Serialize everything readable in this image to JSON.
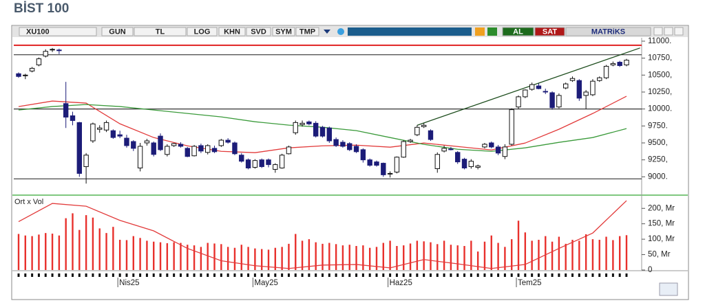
{
  "title": "BİST 100",
  "toolbar": [
    "XU100",
    "GUN",
    "TL",
    "LOG",
    "KHN",
    "SVD",
    "SYM",
    "TMP",
    "AL",
    "SAT",
    "MATRiKS"
  ],
  "chart_data": [
    {
      "type": "candlestick",
      "categories": [
        null,
        null,
        null,
        null,
        null,
        null,
        null,
        null,
        null,
        null,
        null,
        null,
        null,
        null,
        null,
        "Nis25",
        null,
        null,
        null,
        null,
        null,
        null,
        null,
        null,
        null,
        null,
        null,
        null,
        null,
        null,
        null,
        null,
        null,
        null,
        null,
        "May25",
        null,
        null,
        null,
        null,
        null,
        null,
        null,
        null,
        null,
        null,
        null,
        null,
        null,
        null,
        null,
        null,
        null,
        null,
        null,
        "Haz25",
        null,
        null,
        null,
        null,
        null,
        null,
        null,
        null,
        null,
        null,
        null,
        null,
        null,
        null,
        null,
        null,
        null,
        null,
        "Tem25",
        null,
        null,
        null,
        null,
        null,
        null,
        null,
        null,
        null,
        null,
        null,
        null,
        null,
        null,
        null,
        null
      ],
      "open": [
        10520,
        10490,
        10560,
        10650,
        10780,
        10870,
        10870,
        10080,
        9900,
        9800,
        9150,
        9530,
        9700,
        9690,
        9680,
        9620,
        9570,
        9520,
        9130,
        9500,
        9500,
        9600,
        9330,
        9460,
        9480,
        9420,
        9310,
        9460,
        9360,
        9420,
        9460,
        9540,
        9500,
        9320,
        9250,
        9140,
        9250,
        9250,
        9110,
        9130,
        9340,
        9650,
        9770,
        9810,
        9790,
        9730,
        9720,
        9550,
        9510,
        9490,
        9450,
        9400,
        9250,
        9220,
        9200,
        9040,
        9070,
        9290,
        9520,
        9620,
        9740,
        9680,
        9120,
        9380,
        9410,
        9360,
        9260,
        9150,
        9140,
        9440,
        9500,
        9440,
        9300,
        9480,
        10030,
        10180,
        10290,
        10340,
        10260,
        10240,
        10030,
        10310,
        10420,
        10420,
        10200,
        10210,
        10420,
        10460,
        10650,
        10690,
        10650
      ],
      "high": [
        10540,
        10520,
        10620,
        10760,
        10880,
        10900,
        10890,
        10400,
        9960,
        9810,
        9350,
        9800,
        9760,
        9830,
        9700,
        9680,
        9620,
        9540,
        9500,
        9560,
        9520,
        9640,
        9480,
        9500,
        9510,
        9440,
        9470,
        9490,
        9480,
        9460,
        9560,
        9570,
        9520,
        9350,
        9270,
        9260,
        9270,
        9270,
        9200,
        9340,
        9460,
        9830,
        9830,
        9830,
        9820,
        9750,
        9740,
        9580,
        9540,
        9510,
        9480,
        9420,
        9270,
        9240,
        9210,
        9080,
        9300,
        9540,
        9560,
        9760,
        9790,
        9700,
        9360,
        9460,
        9440,
        9380,
        9280,
        9260,
        9180,
        9500,
        9520,
        9470,
        9480,
        10010,
        10200,
        10290,
        10390,
        10380,
        10300,
        10260,
        10230,
        10390,
        10480,
        10440,
        10280,
        10440,
        10480,
        10650,
        10700,
        10710,
        10740
      ],
      "low": [
        10460,
        10440,
        10540,
        10630,
        10760,
        10840,
        10810,
        9720,
        9760,
        9000,
        8900,
        9500,
        9650,
        9660,
        9560,
        9570,
        9430,
        9380,
        9080,
        9460,
        9300,
        9380,
        9300,
        9440,
        9430,
        9290,
        9300,
        9350,
        9330,
        9350,
        9440,
        9490,
        9320,
        9210,
        9110,
        9120,
        9130,
        9140,
        9060,
        9120,
        9330,
        9620,
        9740,
        9760,
        9580,
        9580,
        9500,
        9440,
        9430,
        9380,
        9350,
        9210,
        9150,
        9150,
        9000,
        8990,
        9050,
        9280,
        9500,
        9600,
        9720,
        9530,
        9060,
        9360,
        9390,
        9190,
        9110,
        9120,
        9110,
        9420,
        9420,
        9320,
        9260,
        9460,
        10000,
        10160,
        10270,
        10290,
        10220,
        9990,
        10010,
        10290,
        10400,
        10120,
        10000,
        10190,
        10400,
        10440,
        10630,
        10620,
        10630
      ],
      "close": [
        10480,
        10500,
        10600,
        10740,
        10850,
        10880,
        10860,
        9880,
        9830,
        9050,
        9320,
        9780,
        9720,
        9800,
        9580,
        9600,
        9460,
        9420,
        9450,
        9530,
        9330,
        9400,
        9450,
        9490,
        9450,
        9300,
        9450,
        9380,
        9460,
        9370,
        9540,
        9510,
        9340,
        9230,
        9130,
        9240,
        9150,
        9180,
        9180,
        9320,
        9440,
        9800,
        9790,
        9780,
        9600,
        9600,
        9530,
        9460,
        9450,
        9400,
        9370,
        9250,
        9170,
        9170,
        9030,
        9050,
        9290,
        9520,
        9540,
        9730,
        9760,
        9550,
        9330,
        9420,
        9400,
        9220,
        9130,
        9230,
        9160,
        9480,
        9440,
        9350,
        9440,
        9990,
        10180,
        10280,
        10360,
        10300,
        10250,
        10020,
        10200,
        10370,
        10450,
        10160,
        10250,
        10410,
        10460,
        10630,
        10670,
        10640,
        10720
      ],
      "up_color": "#ffffff",
      "down_color": "#1c1c78",
      "ylim": [
        8740,
        11050
      ],
      "yticks": [
        {
          "value": 11000,
          "label": "11000."
        },
        {
          "value": 10750,
          "label": "10750,"
        },
        {
          "value": 10500,
          "label": "10500,"
        },
        {
          "value": 10250,
          "label": "10250,"
        },
        {
          "value": 10000,
          "label": "10000."
        },
        {
          "value": 9750,
          "label": "9750."
        },
        {
          "value": 9500,
          "label": "9500,"
        },
        {
          "value": 9250,
          "label": "9250,"
        },
        {
          "value": 9000,
          "label": "9000."
        }
      ],
      "hlines": [
        {
          "value": 10940,
          "color": "#e02020"
        },
        {
          "value": 10800,
          "color": "#333333"
        },
        {
          "value": 10000,
          "color": "#333333"
        },
        {
          "value": 8970,
          "color": "#333333"
        }
      ],
      "lines": [
        {
          "color": "#e23a3a",
          "x": [
            0,
            5,
            10,
            15,
            20,
            25,
            30,
            35,
            40,
            45,
            50,
            55,
            60,
            65,
            70,
            75,
            80,
            85,
            90
          ],
          "values": [
            10036,
            10117,
            10087,
            9782,
            9579,
            9457,
            9376,
            9356,
            9427,
            9457,
            9467,
            9437,
            9498,
            9447,
            9396,
            9498,
            9701,
            9934,
            10188
          ]
        },
        {
          "color": "#3a9a3a",
          "x": [
            0,
            5,
            10,
            15,
            20,
            25,
            30,
            35,
            40,
            45,
            50,
            55,
            60,
            65,
            70,
            75,
            80,
            85,
            90
          ],
          "values": [
            9985,
            10036,
            10066,
            10036,
            9985,
            9934,
            9884,
            9812,
            9762,
            9731,
            9681,
            9579,
            9478,
            9406,
            9376,
            9427,
            9508,
            9579,
            9711
          ]
        },
        {
          "color": "#1d4d1d",
          "x": [
            59,
            92
          ],
          "values": [
            9760,
            10900
          ]
        }
      ]
    },
    {
      "type": "bar",
      "label": "Ort x Vol",
      "values": [
        117,
        112,
        110,
        115,
        120,
        118,
        112,
        168,
        184,
        130,
        178,
        170,
        135,
        120,
        140,
        98,
        97,
        110,
        104,
        95,
        92,
        90,
        87,
        90,
        88,
        82,
        80,
        75,
        88,
        86,
        84,
        75,
        72,
        82,
        75,
        70,
        68,
        66,
        72,
        75,
        85,
        117,
        95,
        100,
        90,
        85,
        88,
        84,
        80,
        82,
        78,
        80,
        72,
        75,
        88,
        95,
        78,
        80,
        86,
        95,
        93,
        90,
        84,
        95,
        82,
        80,
        78,
        95,
        60,
        92,
        112,
        88,
        75,
        100,
        160,
        122,
        95,
        98,
        110,
        92,
        108,
        85,
        98,
        95,
        116,
        100,
        98,
        108,
        97,
        110,
        113
      ],
      "color": "#e8302c",
      "ylim": [
        0,
        234
      ],
      "yticks": [
        {
          "value": 200,
          "label": "200, Mr"
        },
        {
          "value": 150,
          "label": "150, Mr"
        },
        {
          "value": 100,
          "label": "100, Mr"
        },
        {
          "value": 50,
          "label": "50, Mr"
        },
        0
      ],
      "line": {
        "color": "#e23a3a",
        "x": [
          0,
          5,
          10,
          15,
          20,
          25,
          30,
          35,
          40,
          45,
          50,
          55,
          60,
          65,
          70,
          75,
          80,
          85,
          90
        ],
        "values": [
          157,
          216,
          207,
          161,
          127,
          70,
          30,
          14,
          5,
          16,
          18,
          7,
          34,
          20,
          5,
          18,
          70,
          120,
          225
        ]
      }
    }
  ]
}
